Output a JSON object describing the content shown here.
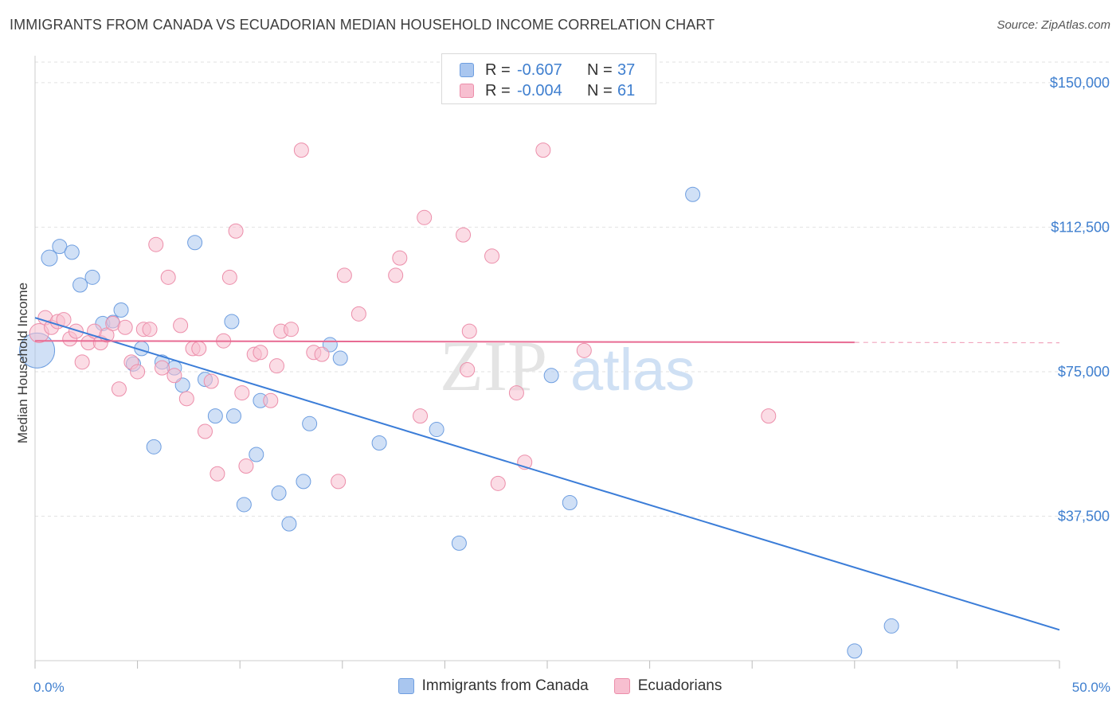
{
  "header": {
    "title": "IMMIGRANTS FROM CANADA VS ECUADORIAN MEDIAN HOUSEHOLD INCOME CORRELATION CHART",
    "source": "Source: ZipAtlas.com"
  },
  "watermark": {
    "zip": "ZIP",
    "atlas": "atlas"
  },
  "legend_stats": [
    {
      "r_label": "R =",
      "r_value": "-0.607",
      "n_label": "N =",
      "n_value": "37",
      "color": "#a9c6ef",
      "border": "#6e9ee0"
    },
    {
      "r_label": "R =",
      "r_value": "-0.004",
      "n_label": "N =",
      "n_value": "61",
      "color": "#f7bfd0",
      "border": "#ec8eaa"
    }
  ],
  "bottom_legend": [
    {
      "label": "Immigrants from Canada",
      "color": "#a9c6ef",
      "border": "#6e9ee0"
    },
    {
      "label": "Ecuadorians",
      "color": "#f7bfd0",
      "border": "#ec8eaa"
    }
  ],
  "chart_data": {
    "type": "scatter",
    "ylabel": "Median Household Income",
    "xlim": [
      0,
      50
    ],
    "ylim": [
      0,
      157000
    ],
    "x_tick_labels": [
      {
        "x": 0,
        "label": "0.0%"
      },
      {
        "x": 50,
        "label": "50.0%"
      }
    ],
    "y_ticks": [
      {
        "y": 37500,
        "label": "$37,500"
      },
      {
        "y": 75000,
        "label": "$75,000"
      },
      {
        "y": 112500,
        "label": "$112,500"
      },
      {
        "y": 150000,
        "label": "$150,000"
      }
    ],
    "grid": true,
    "series": [
      {
        "name": "Immigrants from Canada",
        "color": "#3b7dd8",
        "fill": "#a9c6ef",
        "points": [
          [
            0.1,
            80500,
            22
          ],
          [
            0.7,
            104500,
            10
          ],
          [
            1.2,
            107500,
            9
          ],
          [
            1.8,
            106000,
            9
          ],
          [
            2.2,
            97500,
            9
          ],
          [
            2.8,
            99500,
            9
          ],
          [
            3.3,
            87500,
            9
          ],
          [
            3.8,
            88000,
            8
          ],
          [
            4.2,
            91000,
            9
          ],
          [
            4.8,
            77000,
            9
          ],
          [
            5.2,
            81000,
            9
          ],
          [
            5.8,
            55500,
            9
          ],
          [
            6.2,
            77500,
            9
          ],
          [
            6.8,
            76000,
            9
          ],
          [
            7.2,
            71500,
            9
          ],
          [
            7.8,
            108500,
            9
          ],
          [
            8.3,
            73000,
            9
          ],
          [
            8.8,
            63500,
            9
          ],
          [
            9.6,
            88000,
            9
          ],
          [
            9.7,
            63500,
            9
          ],
          [
            10.2,
            40500,
            9
          ],
          [
            10.8,
            53500,
            9
          ],
          [
            11.0,
            67500,
            9
          ],
          [
            11.9,
            43500,
            9
          ],
          [
            12.4,
            35500,
            9
          ],
          [
            13.1,
            46500,
            9
          ],
          [
            13.4,
            61500,
            9
          ],
          [
            14.4,
            82000,
            9
          ],
          [
            14.9,
            78500,
            9
          ],
          [
            16.8,
            56500,
            9
          ],
          [
            19.6,
            60000,
            9
          ],
          [
            20.7,
            30500,
            9
          ],
          [
            25.2,
            74000,
            9
          ],
          [
            26.1,
            41000,
            9
          ],
          [
            32.1,
            121000,
            9
          ],
          [
            41.8,
            9000,
            9
          ],
          [
            40.0,
            2500,
            9
          ]
        ]
      },
      {
        "name": "Ecuadorians",
        "color": "#e86b93",
        "fill": "#f7bfd0",
        "points": [
          [
            0.2,
            85000,
            12
          ],
          [
            0.5,
            89000,
            9
          ],
          [
            0.8,
            86500,
            9
          ],
          [
            1.1,
            88000,
            9
          ],
          [
            1.4,
            88500,
            9
          ],
          [
            1.7,
            83500,
            9
          ],
          [
            2.0,
            85500,
            9
          ],
          [
            2.3,
            77500,
            9
          ],
          [
            2.6,
            82500,
            9
          ],
          [
            2.9,
            85500,
            9
          ],
          [
            3.2,
            82500,
            9
          ],
          [
            3.5,
            84500,
            9
          ],
          [
            3.8,
            87500,
            9
          ],
          [
            4.1,
            70500,
            9
          ],
          [
            4.4,
            86500,
            9
          ],
          [
            4.7,
            77500,
            9
          ],
          [
            5.0,
            75000,
            9
          ],
          [
            5.3,
            86000,
            9
          ],
          [
            5.6,
            86000,
            9
          ],
          [
            5.9,
            108000,
            9
          ],
          [
            6.2,
            76000,
            9
          ],
          [
            6.5,
            99500,
            9
          ],
          [
            6.8,
            74000,
            9
          ],
          [
            7.1,
            87000,
            9
          ],
          [
            7.4,
            68000,
            9
          ],
          [
            7.7,
            81000,
            9
          ],
          [
            8.0,
            81000,
            9
          ],
          [
            8.3,
            59500,
            9
          ],
          [
            8.6,
            72500,
            9
          ],
          [
            8.9,
            48500,
            9
          ],
          [
            9.2,
            83000,
            9
          ],
          [
            9.5,
            99500,
            9
          ],
          [
            9.8,
            111500,
            9
          ],
          [
            10.1,
            69500,
            9
          ],
          [
            10.3,
            50500,
            9
          ],
          [
            10.7,
            79500,
            9
          ],
          [
            11.0,
            80000,
            9
          ],
          [
            11.5,
            67500,
            9
          ],
          [
            11.8,
            76500,
            9
          ],
          [
            12.0,
            85500,
            9
          ],
          [
            12.5,
            86000,
            9
          ],
          [
            13.0,
            132500,
            9
          ],
          [
            13.6,
            80000,
            9
          ],
          [
            14.0,
            79500,
            9
          ],
          [
            14.8,
            46500,
            9
          ],
          [
            15.1,
            100000,
            9
          ],
          [
            15.8,
            90000,
            9
          ],
          [
            17.6,
            100000,
            9
          ],
          [
            17.8,
            104500,
            9
          ],
          [
            18.8,
            63500,
            9
          ],
          [
            19.0,
            115000,
            9
          ],
          [
            20.9,
            110500,
            9
          ],
          [
            21.1,
            75500,
            9
          ],
          [
            21.2,
            85500,
            9
          ],
          [
            22.3,
            105000,
            9
          ],
          [
            22.6,
            46000,
            9
          ],
          [
            23.5,
            69500,
            9
          ],
          [
            23.9,
            51500,
            9
          ],
          [
            24.8,
            132500,
            9
          ],
          [
            26.8,
            80500,
            9
          ],
          [
            35.8,
            63500,
            9
          ]
        ]
      }
    ],
    "trend_lines": [
      {
        "series": "Immigrants from Canada",
        "x0": 0,
        "y0": 89000,
        "x1": 50,
        "y1": 8000
      },
      {
        "series": "Ecuadorians",
        "x0": 0,
        "y0": 83000,
        "x1": 40,
        "y1": 82600,
        "dash_to_x": 50
      }
    ]
  }
}
